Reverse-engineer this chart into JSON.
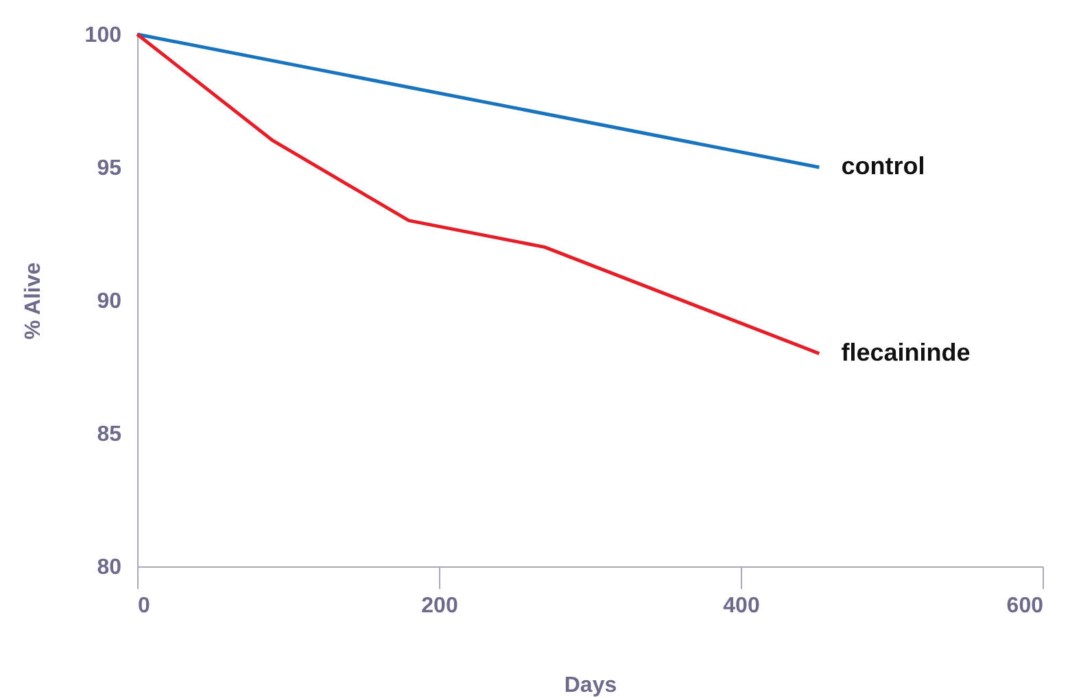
{
  "chart_data": {
    "type": "line",
    "xlabel": "Days",
    "ylabel": "% Alive",
    "x": [
      0,
      90,
      180,
      270,
      452
    ],
    "series": [
      {
        "name": "control",
        "color": "#1a73bd",
        "values": [
          100,
          null,
          null,
          null,
          95
        ]
      },
      {
        "name": "flecaininde",
        "color": "#e3202a",
        "values": [
          100,
          96,
          93,
          92,
          88
        ]
      }
    ],
    "xlim": [
      0,
      600
    ],
    "xticks": [
      0,
      200,
      400,
      600
    ],
    "ylim": [
      80,
      100
    ],
    "yticks": [
      80,
      85,
      90,
      95,
      100
    ]
  }
}
